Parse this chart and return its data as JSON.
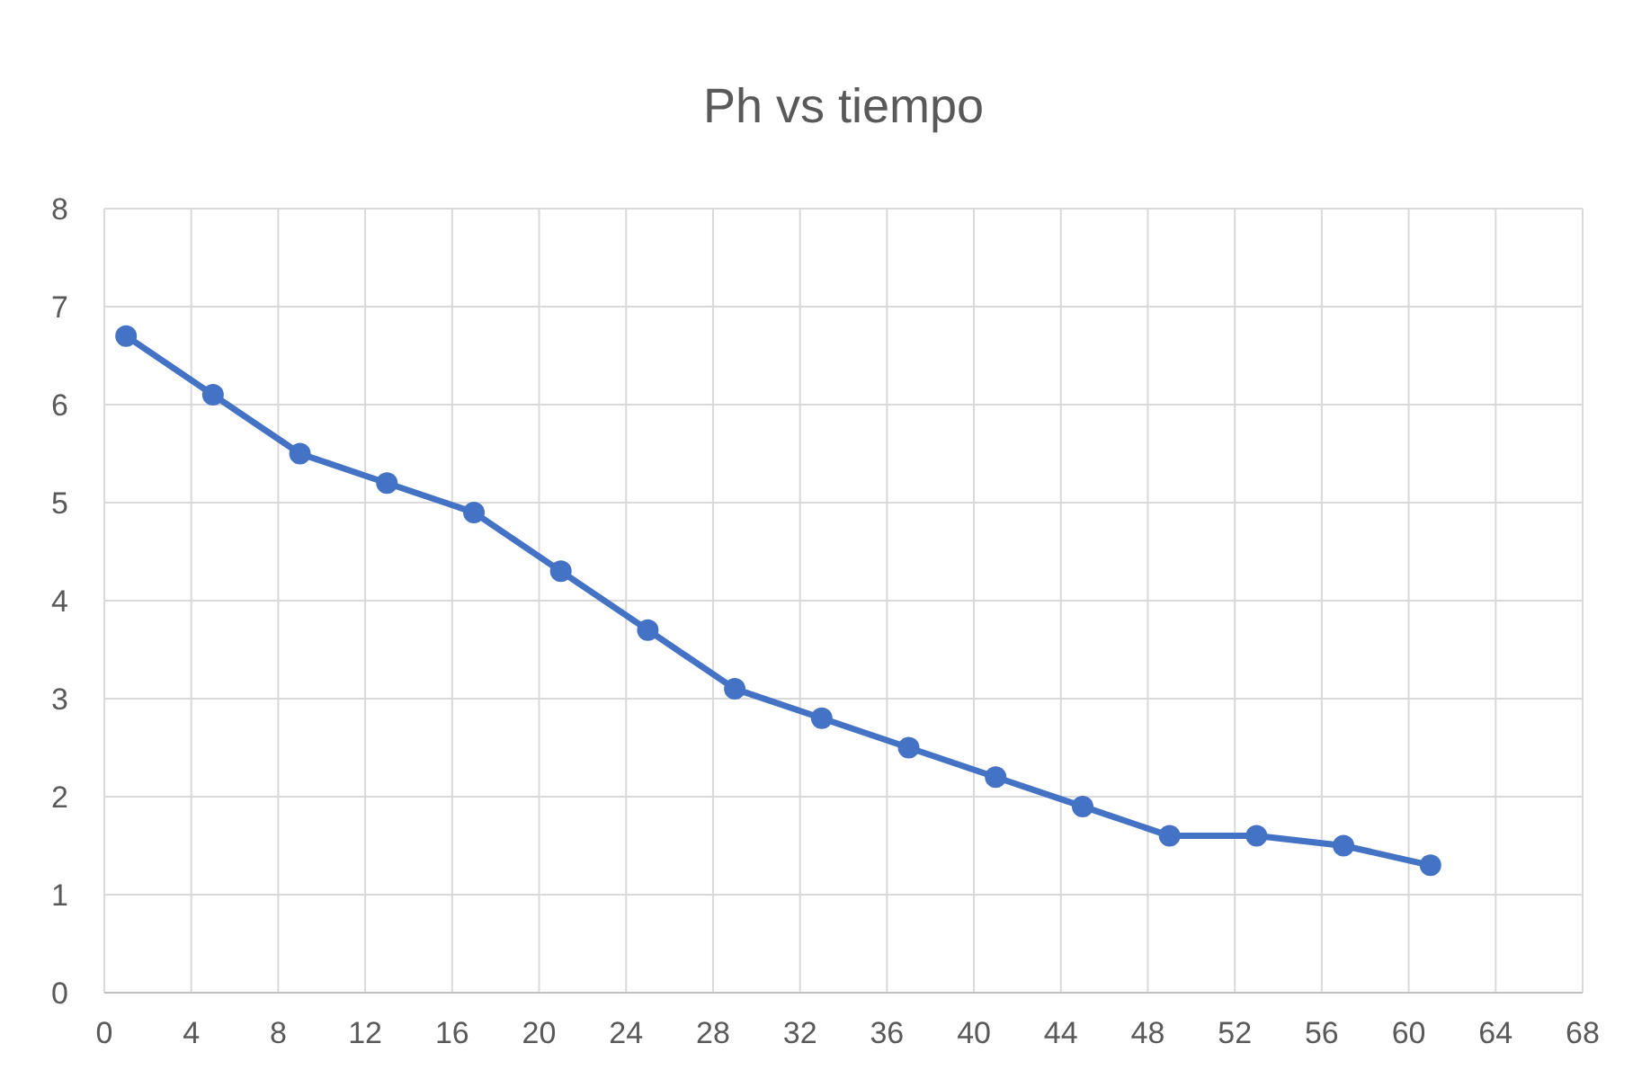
{
  "chart_data": {
    "type": "line",
    "title": "Ph vs tiempo",
    "x": [
      1,
      5,
      9,
      13,
      17,
      21,
      25,
      29,
      33,
      37,
      41,
      45,
      49,
      53,
      57,
      61
    ],
    "series": [
      {
        "color": "#4472c4",
        "values": [
          6.7,
          6.1,
          5.5,
          5.2,
          4.9,
          4.3,
          3.7,
          3.1,
          2.8,
          2.5,
          2.2,
          1.9,
          1.6,
          1.6,
          1.5,
          1.3
        ]
      }
    ],
    "xlim": [
      0,
      68
    ],
    "xticks": [
      0,
      4,
      8,
      12,
      16,
      20,
      24,
      28,
      32,
      36,
      40,
      44,
      48,
      52,
      56,
      60,
      64,
      68
    ],
    "ylim": [
      0,
      8
    ],
    "yticks": [
      0,
      1,
      2,
      3,
      4,
      5,
      6,
      7,
      8
    ],
    "grid": true,
    "marker": "circle",
    "line_style": "solid"
  }
}
